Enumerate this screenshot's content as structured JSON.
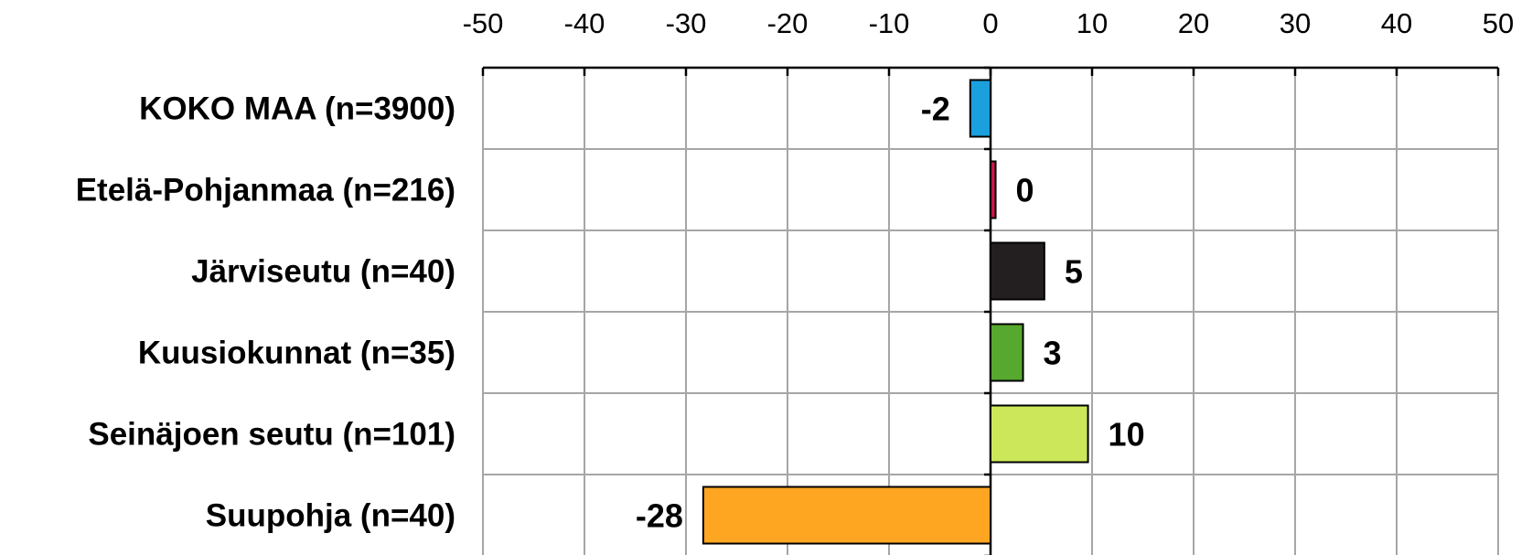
{
  "chart_data": {
    "type": "bar",
    "orientation": "horizontal",
    "title": "",
    "xlabel": "",
    "ylabel": "",
    "xlim": [
      -50,
      50
    ],
    "x_ticks": [
      -50,
      -40,
      -30,
      -20,
      -10,
      0,
      10,
      20,
      30,
      40,
      50
    ],
    "x_tick_labels": [
      "-50",
      "-40",
      "-30",
      "-20",
      "-10",
      "0",
      "10",
      "20",
      "30",
      "40",
      "50"
    ],
    "axis_position": "top",
    "grid": true,
    "legend": "none",
    "categories": [
      "KOKO MAA (n=3900)",
      "Etelä-Pohjanmaa (n=216)",
      "Järviseutu (n=40)",
      "Kuusiokunnat (n=35)",
      "Seinäjoen seutu (n=101)",
      "Suupohja (n=40)"
    ],
    "values": [
      -2,
      0,
      5,
      3,
      10,
      -28
    ],
    "bar_values": [
      -2,
      0.5,
      5.3,
      3.2,
      9.6,
      -28.3
    ],
    "data_labels": [
      "-2",
      "0",
      "5",
      "3",
      "10",
      "-28"
    ],
    "colors": [
      "#1aa0dc",
      "#c8174a",
      "#231f20",
      "#56a82e",
      "#cce85a",
      "#fea521"
    ]
  }
}
